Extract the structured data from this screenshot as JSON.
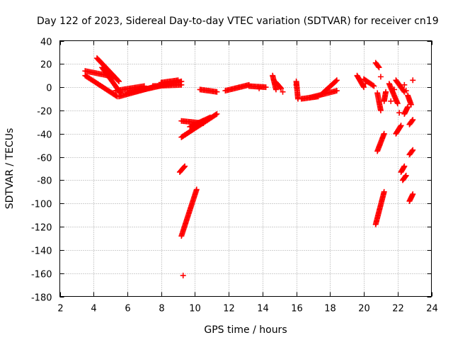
{
  "chart_data": {
    "type": "scatter",
    "title": "Day 122 of 2023, Sidereal Day-to-day VTEC variation (SDTVAR) for receiver cn19",
    "xlabel": "GPS time / hours",
    "ylabel": "SDTVAR / TECUs",
    "xlim": [
      2,
      24
    ],
    "ylim": [
      -180,
      40
    ],
    "xticks": [
      2,
      4,
      6,
      8,
      10,
      12,
      14,
      16,
      18,
      20,
      22,
      24
    ],
    "yticks": [
      -180,
      -160,
      -140,
      -120,
      -100,
      -80,
      -60,
      -40,
      -20,
      0,
      20,
      40
    ],
    "grid": true,
    "marker": "+",
    "color": "#ff0000",
    "segments": [
      [
        [
          3.5,
          14
        ],
        [
          5.2,
          9
        ]
      ],
      [
        [
          3.5,
          10
        ],
        [
          5.4,
          -8
        ]
      ],
      [
        [
          4.2,
          25
        ],
        [
          5.5,
          5
        ]
      ],
      [
        [
          4.5,
          17
        ],
        [
          5.6,
          -5
        ]
      ],
      [
        [
          5.3,
          -3
        ],
        [
          7.0,
          1
        ]
      ],
      [
        [
          5.5,
          -8
        ],
        [
          7.5,
          0
        ]
      ],
      [
        [
          6.0,
          -5
        ],
        [
          9.2,
          5
        ]
      ],
      [
        [
          7.5,
          1
        ],
        [
          9.2,
          2
        ]
      ],
      [
        [
          8.0,
          4
        ],
        [
          9.0,
          6
        ]
      ],
      [
        [
          9.2,
          -29
        ],
        [
          10.5,
          -31
        ]
      ],
      [
        [
          9.2,
          -43
        ],
        [
          11.3,
          -23
        ]
      ],
      [
        [
          9.7,
          -34
        ],
        [
          10.9,
          -26
        ]
      ],
      [
        [
          9.1,
          -73
        ],
        [
          9.4,
          -68
        ]
      ],
      [
        [
          9.2,
          -128
        ],
        [
          10.1,
          -88
        ]
      ],
      [
        [
          10.3,
          -2
        ],
        [
          11.3,
          -4
        ]
      ],
      [
        [
          11.8,
          -3
        ],
        [
          13.2,
          2
        ]
      ],
      [
        [
          13.2,
          1
        ],
        [
          14.2,
          0
        ]
      ],
      [
        [
          14.6,
          10
        ],
        [
          14.8,
          -2
        ]
      ],
      [
        [
          14.8,
          4
        ],
        [
          15.1,
          -1
        ]
      ],
      [
        [
          16.0,
          5
        ],
        [
          16.1,
          -10
        ]
      ],
      [
        [
          16.3,
          -10
        ],
        [
          17.3,
          -8
        ]
      ],
      [
        [
          16.8,
          -9
        ],
        [
          18.4,
          -3
        ]
      ],
      [
        [
          17.5,
          -6
        ],
        [
          18.4,
          6
        ]
      ],
      [
        [
          19.6,
          10
        ],
        [
          20.0,
          0
        ]
      ],
      [
        [
          20.0,
          7
        ],
        [
          20.6,
          1
        ]
      ],
      [
        [
          20.7,
          21
        ],
        [
          20.9,
          17
        ]
      ],
      [
        [
          20.8,
          -55
        ],
        [
          21.2,
          -40
        ]
      ],
      [
        [
          20.7,
          -118
        ],
        [
          21.2,
          -90
        ]
      ],
      [
        [
          20.8,
          -5
        ],
        [
          21.0,
          -20
        ]
      ],
      [
        [
          21.2,
          -12
        ],
        [
          21.3,
          -4
        ]
      ],
      [
        [
          21.5,
          3
        ],
        [
          22.0,
          -14
        ]
      ],
      [
        [
          21.9,
          6
        ],
        [
          22.4,
          -4
        ]
      ],
      [
        [
          21.9,
          -40
        ],
        [
          22.2,
          -33
        ]
      ],
      [
        [
          22.2,
          -73
        ],
        [
          22.4,
          -68
        ]
      ],
      [
        [
          22.3,
          -80
        ],
        [
          22.5,
          -76
        ]
      ],
      [
        [
          22.4,
          -23
        ],
        [
          22.6,
          -17
        ]
      ],
      [
        [
          22.6,
          -7
        ],
        [
          22.8,
          -15
        ]
      ],
      [
        [
          22.7,
          -32
        ],
        [
          22.9,
          -28
        ]
      ],
      [
        [
          22.7,
          -58
        ],
        [
          22.9,
          -54
        ]
      ],
      [
        [
          22.7,
          -98
        ],
        [
          22.9,
          -92
        ]
      ]
    ],
    "points": [
      [
        9.3,
        -162
      ],
      [
        13.8,
        -1
      ],
      [
        15.2,
        -4
      ],
      [
        16.0,
        2
      ],
      [
        20.1,
        3
      ],
      [
        21.0,
        9
      ],
      [
        21.6,
        -12
      ],
      [
        22.1,
        -22
      ],
      [
        22.5,
        -3
      ],
      [
        22.9,
        6
      ],
      [
        21.8,
        -2
      ],
      [
        22.4,
        2
      ]
    ]
  }
}
